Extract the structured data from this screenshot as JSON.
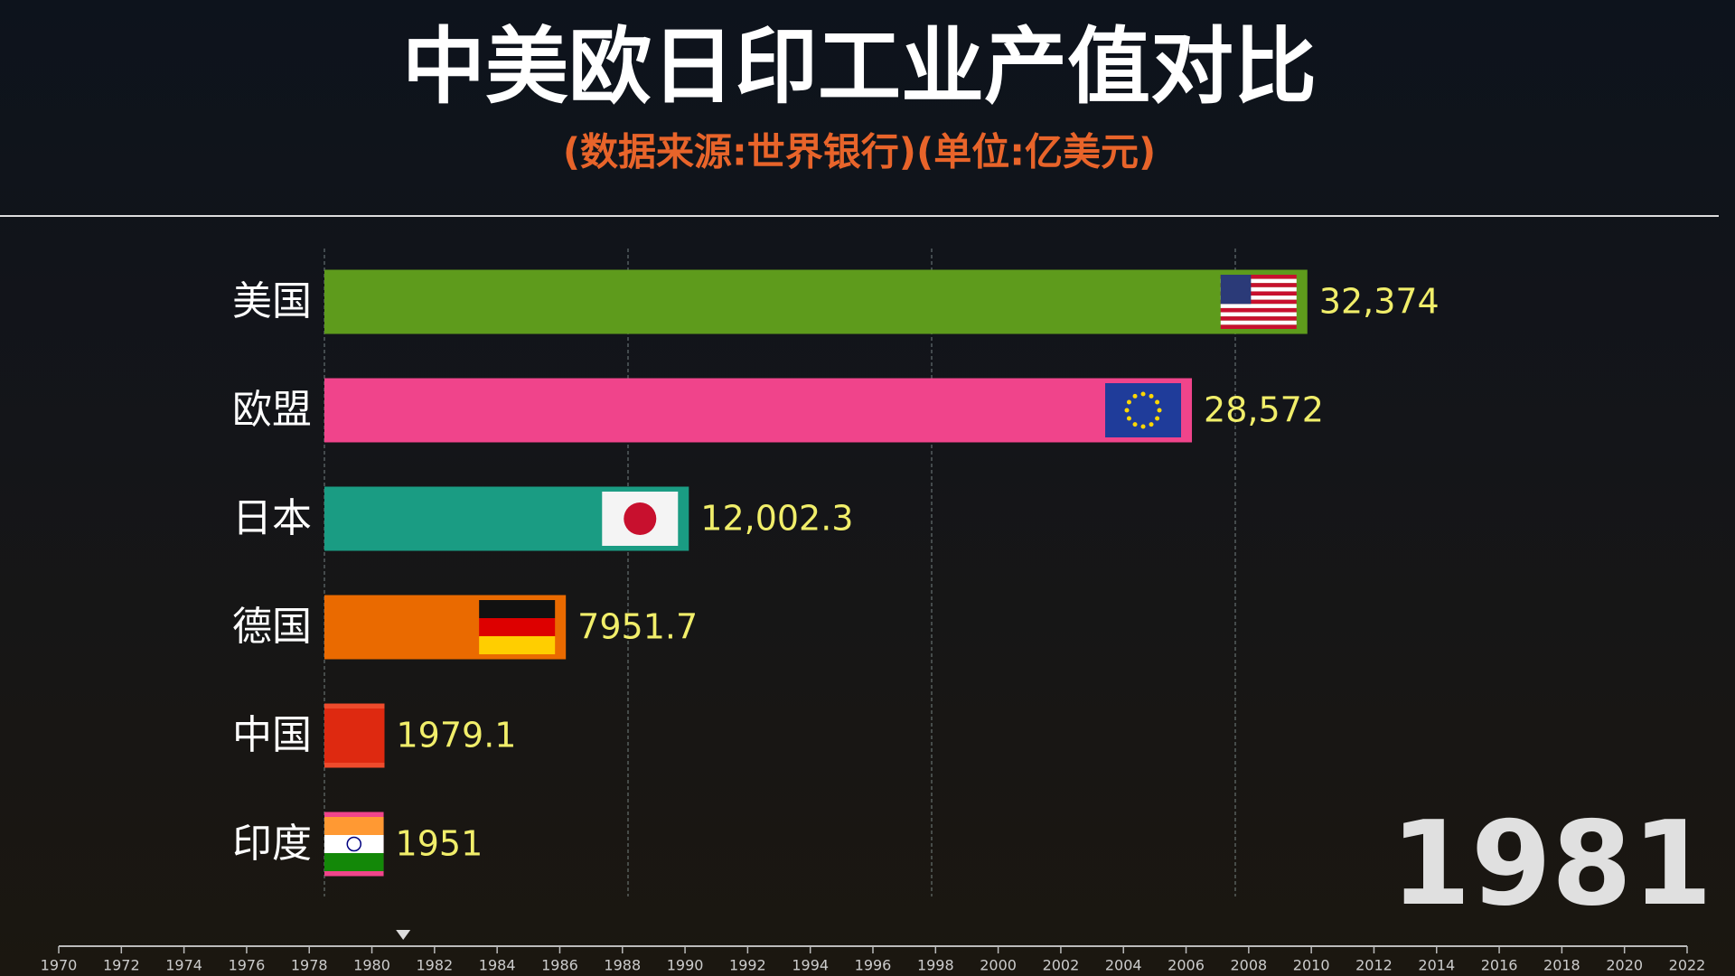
{
  "chart_data": {
    "type": "bar",
    "orientation": "horizontal",
    "title": "中美欧日印工业产值对比",
    "subtitle": "(数据来源:世界银行)(单位:亿美元)",
    "categories": [
      "美国",
      "欧盟",
      "日本",
      "德国",
      "中国",
      "印度"
    ],
    "values": [
      32374,
      28572,
      12002.3,
      7951.7,
      1979.1,
      1951
    ],
    "value_labels": [
      "32,374",
      "28,572",
      "12,002.3",
      "7951.7",
      "1979.1",
      "1951"
    ],
    "colors": [
      "#5e9b1c",
      "#f0448b",
      "#1a9c83",
      "#ea6a00",
      "#ef4b2c",
      "#f0448b"
    ],
    "xlim": [
      0,
      45000
    ],
    "xticks": [
      0,
      10000,
      20000,
      30000
    ],
    "grid": true,
    "timeline": {
      "lim": [
        1970,
        2022
      ],
      "ticks": [
        1970,
        1972,
        1974,
        1976,
        1978,
        1980,
        1982,
        1984,
        1986,
        1988,
        1990,
        1992,
        1994,
        1996,
        1998,
        2000,
        2002,
        2004,
        2006,
        2008,
        2010,
        2012,
        2014,
        2016,
        2018,
        2020,
        2022
      ],
      "current": 1981
    }
  }
}
